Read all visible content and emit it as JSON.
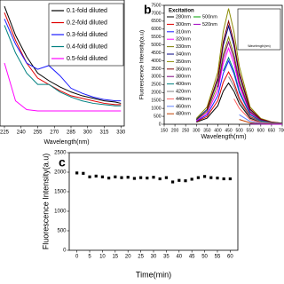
{
  "chart_data": [
    {
      "type": "line",
      "xlabel": "Wavelength(nm)",
      "x": [
        225,
        235,
        245,
        255,
        265,
        275,
        285,
        295,
        305,
        315,
        325,
        330
      ],
      "xlim": [
        221,
        333
      ],
      "xticks": [
        225,
        240,
        255,
        270,
        285,
        300,
        315,
        330
      ],
      "ylim": [
        0,
        1
      ],
      "series": [
        {
          "name": "0.1-fold diluted",
          "color": "#000000",
          "values": [
            0.95,
            0.72,
            0.55,
            0.42,
            0.36,
            0.31,
            0.27,
            0.24,
            0.22,
            0.2,
            0.19,
            0.18
          ]
        },
        {
          "name": "0.2-fold diluted",
          "color": "#e00000",
          "values": [
            0.9,
            0.68,
            0.5,
            0.38,
            0.33,
            0.28,
            0.24,
            0.22,
            0.2,
            0.18,
            0.17,
            0.17
          ]
        },
        {
          "name": "0.3-fold diluted",
          "color": "#1a1aff",
          "values": [
            0.85,
            0.65,
            0.5,
            0.45,
            0.48,
            0.4,
            0.3,
            0.26,
            0.23,
            0.21,
            0.2,
            0.2
          ]
        },
        {
          "name": "0.4-fold diluted",
          "color": "#008080",
          "values": [
            0.8,
            0.58,
            0.42,
            0.33,
            0.33,
            0.27,
            0.23,
            0.2,
            0.18,
            0.17,
            0.16,
            0.16
          ]
        },
        {
          "name": "0.5-fold diluted",
          "color": "#ff00ff",
          "values": [
            0.5,
            0.2,
            0.13,
            0.12,
            0.12,
            0.12,
            0.12,
            0.12,
            0.12,
            0.12,
            0.12,
            0.12
          ]
        }
      ]
    },
    {
      "type": "line",
      "panel_label": "b",
      "xlabel": "Wavelength(nm)",
      "ylabel": "Fluorescence Intensity(a.u)",
      "legend_title": "Excitation",
      "inset_xlabel": "Wavelength(nm)",
      "x": [
        300,
        350,
        400,
        425,
        450,
        475,
        500,
        550,
        600,
        650,
        700
      ],
      "xlim": [
        150,
        700
      ],
      "xticks": [
        150,
        200,
        250,
        300,
        350,
        400,
        450,
        500,
        550,
        600,
        650,
        700
      ],
      "ylim": [
        0,
        7500
      ],
      "yticks": [
        0,
        500,
        1000,
        1500,
        2000,
        2500,
        3000,
        3500,
        4000,
        4500,
        5000,
        5500,
        6000,
        6500,
        7000,
        7500
      ],
      "series": [
        {
          "name": "280nm",
          "color": "#000000",
          "values": [
            130,
            390,
            1170,
            2080,
            2600,
            2080,
            1300,
            390,
            130,
            52,
            26
          ]
        },
        {
          "name": "300nm",
          "color": "#e00000",
          "values": [
            165,
            495,
            1485,
            2640,
            3300,
            2640,
            1650,
            495,
            165,
            66,
            33
          ]
        },
        {
          "name": "310nm",
          "color": "#1a1aff",
          "values": [
            200,
            600,
            1800,
            3200,
            4000,
            3200,
            2000,
            600,
            200,
            80,
            40
          ]
        },
        {
          "name": "320nm",
          "color": "#ff00ff",
          "values": [
            240,
            720,
            2160,
            3840,
            4800,
            3840,
            2400,
            720,
            240,
            96,
            48
          ]
        },
        {
          "name": "330nm",
          "color": "#808000",
          "values": [
            275,
            825,
            2475,
            4400,
            5500,
            4400,
            2750,
            825,
            275,
            110,
            55
          ]
        },
        {
          "name": "340nm",
          "color": "#000080",
          "values": [
            310,
            930,
            2790,
            4960,
            6200,
            4960,
            3100,
            930,
            310,
            124,
            62
          ]
        },
        {
          "name": "350nm",
          "color": "#8a8a00",
          "values": [
            365,
            1095,
            3285,
            5840,
            7300,
            5840,
            3650,
            1095,
            365,
            146,
            73
          ]
        },
        {
          "name": "360nm",
          "color": "#800000",
          "values": [
            null,
            975,
            2925,
            5200,
            6500,
            5200,
            3250,
            975,
            325,
            130,
            65
          ]
        },
        {
          "name": "380nm",
          "color": "#800080",
          "values": [
            null,
            null,
            2340,
            4160,
            5200,
            4160,
            2600,
            780,
            260,
            104,
            52
          ]
        },
        {
          "name": "400nm",
          "color": "#008080",
          "values": [
            null,
            null,
            null,
            3360,
            4200,
            3360,
            2100,
            630,
            210,
            84,
            42
          ]
        },
        {
          "name": "420nm",
          "color": "#808080",
          "values": [
            null,
            null,
            null,
            null,
            3000,
            2400,
            1500,
            450,
            150,
            60,
            30
          ]
        },
        {
          "name": "440nm",
          "color": "#ff6060",
          "values": [
            null,
            null,
            null,
            null,
            null,
            1600,
            1000,
            300,
            100,
            40,
            20
          ]
        },
        {
          "name": "460nm",
          "color": "#6080ff",
          "values": [
            null,
            null,
            null,
            null,
            null,
            null,
            600,
            180,
            60,
            24,
            12
          ]
        },
        {
          "name": "480nm",
          "color": "#c04000",
          "values": [
            null,
            null,
            null,
            null,
            null,
            null,
            300,
            90,
            30,
            12,
            6
          ]
        },
        {
          "name": "500nm",
          "color": "#00a000",
          "values": [
            null,
            null,
            null,
            null,
            null,
            null,
            null,
            45,
            15,
            6,
            3
          ]
        },
        {
          "name": "520nm",
          "color": "#a000c0",
          "values": [
            null,
            null,
            null,
            null,
            null,
            null,
            null,
            23,
            8,
            3,
            2
          ]
        }
      ]
    },
    {
      "type": "scatter",
      "panel_label": "c",
      "xlabel": "Time(min)",
      "ylabel": "Fluorescence Intensity(a.u)",
      "color": "#000000",
      "x": [
        0,
        2.5,
        5,
        7.5,
        10,
        12.5,
        15,
        17.5,
        20,
        22.5,
        25,
        27.5,
        30,
        32.5,
        35,
        37.5,
        40,
        42.5,
        45,
        47.5,
        50,
        52.5,
        55,
        57.5,
        60
      ],
      "values": [
        1980,
        1970,
        1880,
        1900,
        1880,
        1850,
        1880,
        1860,
        1870,
        1840,
        1860,
        1850,
        1870,
        1830,
        1860,
        1750,
        1790,
        1780,
        1820,
        1860,
        1890,
        1860,
        1850,
        1830,
        1830
      ],
      "xlim": [
        -3,
        63
      ],
      "xticks": [
        0,
        5,
        10,
        15,
        20,
        25,
        30,
        35,
        40,
        45,
        50,
        55,
        60
      ],
      "ylim": [
        0,
        2500
      ],
      "yticks": [
        0,
        500,
        1000,
        1500,
        2000,
        2500
      ]
    }
  ]
}
